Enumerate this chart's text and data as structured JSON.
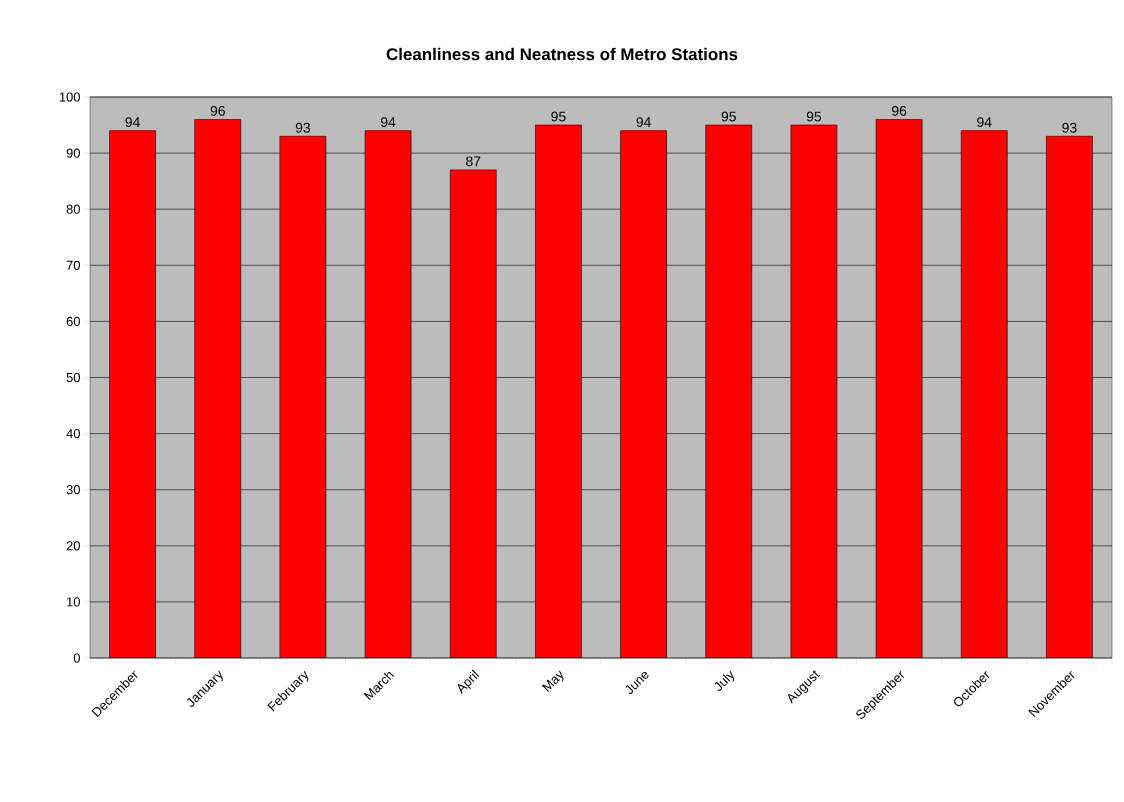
{
  "chart_data": {
    "type": "bar",
    "title": "Cleanliness and Neatness of Metro Stations",
    "categories": [
      "December",
      "January",
      "February",
      "March",
      "April",
      "May",
      "June",
      "July",
      "August",
      "September",
      "October",
      "November"
    ],
    "values": [
      94,
      96,
      93,
      94,
      87,
      95,
      94,
      95,
      95,
      96,
      94,
      93
    ],
    "color": "#ff0000",
    "ylim": [
      0,
      100
    ],
    "yticks": [
      0,
      10,
      20,
      30,
      40,
      50,
      60,
      70,
      80,
      90,
      100
    ],
    "grid": "y",
    "data_labels": true
  }
}
